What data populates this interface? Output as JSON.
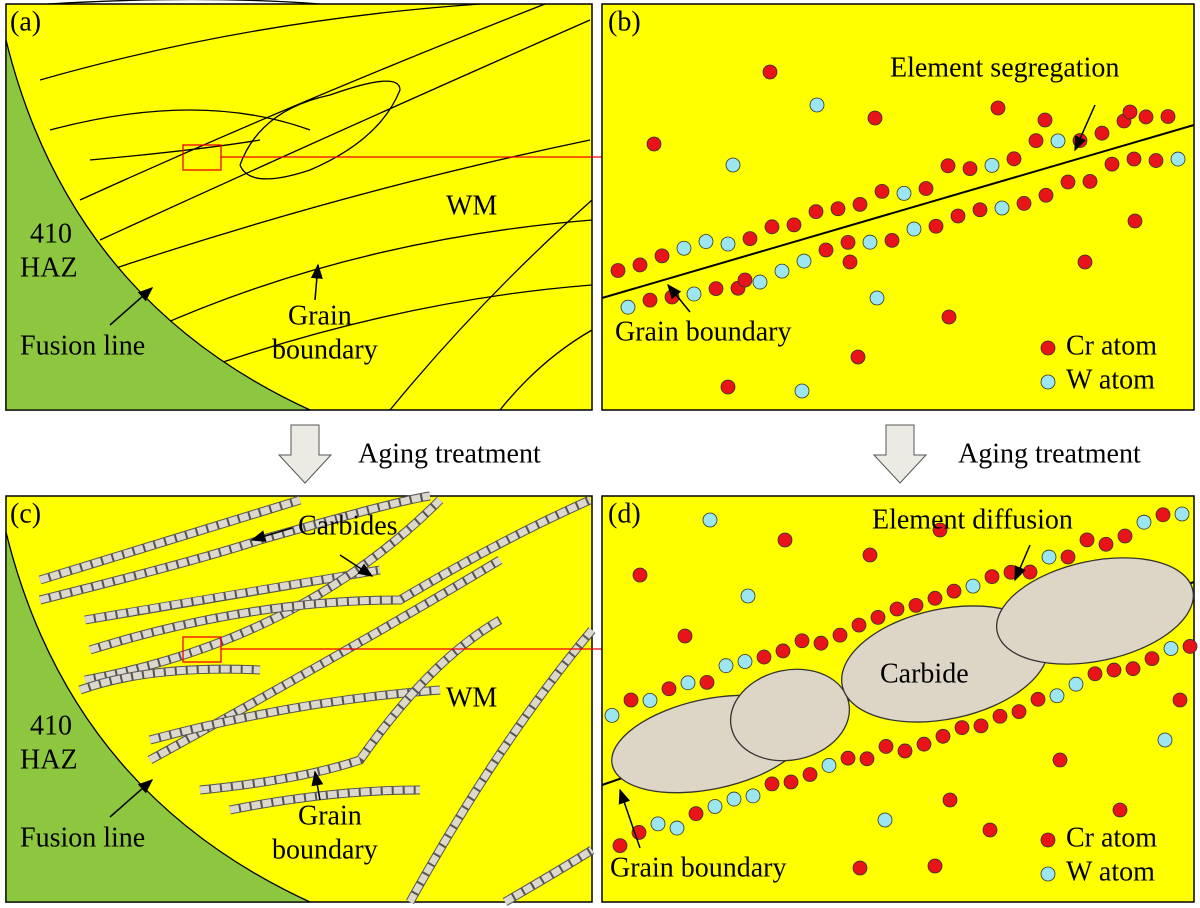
{
  "panel_a": {
    "label": "(a)",
    "haz": [
      "410",
      "HAZ"
    ],
    "fusion_line": "Fusion line",
    "grain_boundary": [
      "Grain",
      "boundary"
    ],
    "wm": "WM"
  },
  "panel_b": {
    "label": "(b)",
    "element_segregation": "Element segregation",
    "grain_boundary": "Grain boundary",
    "legend": [
      "Cr atom",
      "W atom"
    ]
  },
  "arrows": [
    "Aging treatment",
    "Aging treatment"
  ],
  "panel_c": {
    "label": "(c)",
    "haz": [
      "410",
      "HAZ"
    ],
    "fusion_line": "Fusion line",
    "grain_boundary": [
      "Grain",
      "boundary"
    ],
    "wm": "WM",
    "carbides": "Carbides"
  },
  "panel_d": {
    "label": "(d)",
    "element_diffusion": "Element diffusion",
    "carbide": "Carbide",
    "grain_boundary": "Grain boundary",
    "legend": [
      "Cr atom",
      "W atom"
    ]
  }
}
